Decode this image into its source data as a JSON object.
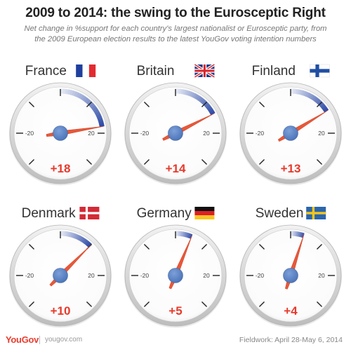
{
  "title": "2009 to 2014: the swing to the Eurosceptic Right",
  "subtitle_line1": "Net change in %support for each country's largest nationalist or Eurosceptic party, from",
  "subtitle_line2": "the 2009 European election results to the latest YouGov voting intention numbers",
  "colors": {
    "needle": "#e8583a",
    "hub": "#5b83c7",
    "arc_dark": "#2d4aa6",
    "arc_light": "#e8ecf6",
    "value_text": "#e8392b",
    "bezel": "#cfcfcf"
  },
  "chart_data": {
    "type": "gauge",
    "scale_min": -30,
    "scale_max": 30,
    "tick_labels": [
      "-20",
      "20"
    ],
    "units": "percentage points",
    "gauges": [
      {
        "country": "France",
        "value": 18,
        "value_label": "+18",
        "flag": "france-flag"
      },
      {
        "country": "Britain",
        "value": 14,
        "value_label": "+14",
        "flag": "uk-flag"
      },
      {
        "country": "Finland",
        "value": 13,
        "value_label": "+13",
        "flag": "finland-flag"
      },
      {
        "country": "Denmark",
        "value": 10,
        "value_label": "+10",
        "flag": "denmark-flag"
      },
      {
        "country": "Germany",
        "value": 5,
        "value_label": "+5",
        "flag": "germany-flag"
      },
      {
        "country": "Sweden",
        "value": 4,
        "value_label": "+4",
        "flag": "sweden-flag"
      }
    ]
  },
  "footer": {
    "logo": "YouGov",
    "site": "yougov.com",
    "fieldwork": "Fieldwork: April 28-May 6, 2014"
  }
}
